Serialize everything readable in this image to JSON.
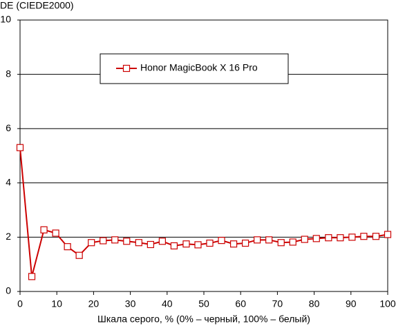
{
  "chart_data": {
    "type": "line",
    "y_label": "DE (CIEDE2000)",
    "x_label": "Шкала серого, % (0% – черный, 100% – белый)",
    "x": [
      0,
      3.2,
      6.5,
      9.7,
      12.9,
      16.1,
      19.4,
      22.6,
      25.8,
      29,
      32.3,
      35.5,
      38.7,
      41.9,
      45.2,
      48.4,
      51.6,
      54.8,
      58.1,
      61.3,
      64.5,
      67.7,
      71,
      74.2,
      77.4,
      80.6,
      83.9,
      87.1,
      90.3,
      93.5,
      96.8,
      100
    ],
    "series": [
      {
        "name": "Honor MagicBook X 16 Pro",
        "color": "#cc0000",
        "values": [
          5.3,
          0.55,
          2.27,
          2.15,
          1.65,
          1.33,
          1.8,
          1.87,
          1.9,
          1.85,
          1.8,
          1.73,
          1.85,
          1.68,
          1.75,
          1.72,
          1.78,
          1.88,
          1.75,
          1.78,
          1.9,
          1.9,
          1.8,
          1.82,
          1.92,
          1.95,
          1.98,
          1.98,
          2.0,
          2.03,
          2.03,
          2.1
        ]
      }
    ],
    "xlim": [
      0,
      100
    ],
    "xticks": [
      0,
      10,
      20,
      30,
      40,
      50,
      60,
      70,
      80,
      90,
      100
    ],
    "ylim": [
      0,
      10
    ],
    "yticks": [
      0,
      2,
      4,
      6,
      8,
      10
    ],
    "grid": true,
    "legend": "upper center"
  }
}
